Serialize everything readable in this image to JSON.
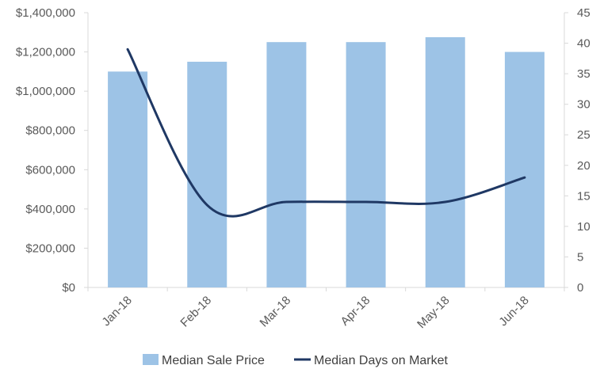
{
  "chart_data": {
    "type": "bar",
    "categories": [
      "Jan-18",
      "Feb-18",
      "Mar-18",
      "Apr-18",
      "May-18",
      "Jun-18"
    ],
    "series": [
      {
        "name": "Median Sale Price",
        "type": "bar",
        "axis": "left",
        "color": "#9dc3e6",
        "values": [
          1100000,
          1150000,
          1250000,
          1250000,
          1275000,
          1200000
        ]
      },
      {
        "name": "Median Days on Market",
        "type": "line",
        "axis": "right",
        "color": "#1f3864",
        "values": [
          39,
          13.5,
          14,
          14,
          14,
          18
        ]
      }
    ],
    "y_left": {
      "min": 0,
      "max": 1400000,
      "step": 200000,
      "tick_labels": [
        "$0",
        "$200,000",
        "$400,000",
        "$600,000",
        "$800,000",
        "$1,000,000",
        "$1,200,000",
        "$1,400,000"
      ]
    },
    "y_right": {
      "min": 0,
      "max": 45,
      "step": 5,
      "tick_labels": [
        "0",
        "5",
        "10",
        "15",
        "20",
        "25",
        "30",
        "35",
        "40",
        "45"
      ]
    },
    "grid": false,
    "legend_position": "bottom",
    "title": "",
    "xlabel": "",
    "ylabel": ""
  }
}
